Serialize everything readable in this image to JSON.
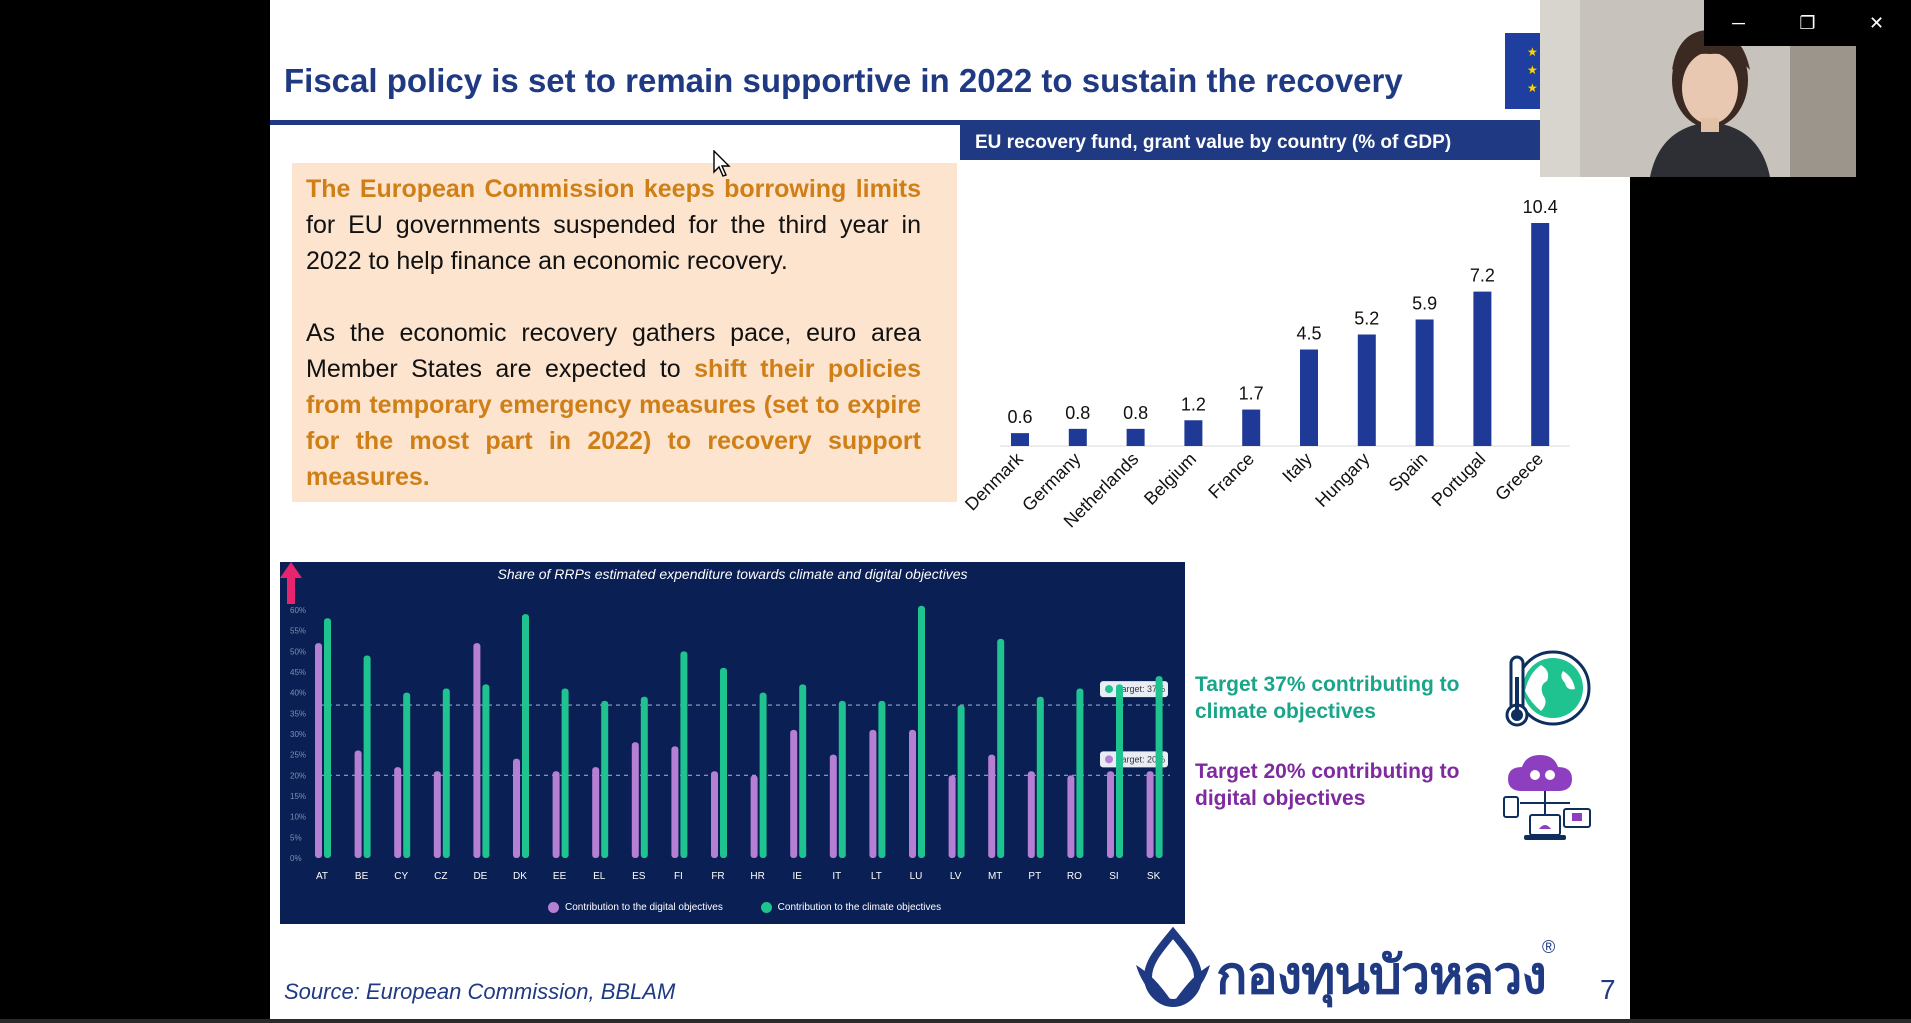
{
  "slide": {
    "title": "Fiscal policy is set to remain supportive in 2022 to sustain the recovery",
    "chart_title": "EU recovery fund, grant value by country (% of GDP)",
    "text": {
      "p1_hl": "The European Commission keeps borrowing limits",
      "p1_rest": " for EU governments suspended for the third year in 2022 to help finance an economic recovery.",
      "p2_start": "As the economic recovery gathers pace, euro area Member States are expected to ",
      "p2_hl": "shift their policies from temporary emergency measures (set to expire for the most part in 2022) to recovery support measures."
    },
    "rrp": {
      "title": "Share of RRPs estimated expenditure towards climate and digital objectives",
      "legend_digital": "Contribution to the digital objectives",
      "legend_climate": "Contribution to the climate objectives"
    },
    "targets": {
      "climate": "Target 37% contributing to climate objectives",
      "digital": "Target 20% contributing to digital objectives"
    },
    "source": "Source:  European Commission, BBLAM",
    "logo_text": "กองทุนบัวหลวง",
    "logo_reg": "®",
    "page_number": "7"
  },
  "window_controls": {
    "minimize": "─",
    "restore": "❐",
    "close": "✕"
  },
  "icons": [
    "globe-thermometer-icon",
    "cloud-devices-icon",
    "eu-flag-icon",
    "cursor-icon",
    "up-arrow-icon"
  ],
  "colors": {
    "navy": "#1F3A82",
    "orange": "#D07F17",
    "teal": "#18A589",
    "purple": "#7F2B9F",
    "rrp_bg": "#0A1F54",
    "digital": "#B57FD3",
    "climate": "#1EC38F"
  },
  "chart_data": [
    {
      "type": "bar",
      "title": "EU recovery fund, grant value by country (% of GDP)",
      "categories": [
        "Denmark",
        "Germany",
        "Netherlands",
        "Belgium",
        "France",
        "Italy",
        "Hungary",
        "Spain",
        "Portugal",
        "Greece"
      ],
      "values": [
        0.6,
        0.8,
        0.8,
        1.2,
        1.7,
        4.5,
        5.2,
        5.9,
        7.2,
        10.4
      ],
      "ylim": [
        0,
        10.4
      ],
      "data_labels": [
        "0.6",
        "0.8",
        "0.8",
        "1.2",
        "1.7",
        "4.5",
        "5.2",
        "5.9",
        "7.2",
        "10.4"
      ],
      "grid": false
    },
    {
      "type": "bar",
      "title": "Share of RRPs estimated expenditure towards climate and digital objectives",
      "categories": [
        "AT",
        "BE",
        "CY",
        "CZ",
        "DE",
        "DK",
        "EE",
        "EL",
        "ES",
        "FI",
        "FR",
        "HR",
        "IE",
        "IT",
        "LT",
        "LU",
        "LV",
        "MT",
        "PT",
        "RO",
        "SI",
        "SK"
      ],
      "y_ticks": [
        "0%",
        "5%",
        "10%",
        "15%",
        "20%",
        "25%",
        "30%",
        "35%",
        "40%",
        "45%",
        "50%",
        "55%",
        "60%"
      ],
      "ylim": [
        0,
        60
      ],
      "series": [
        {
          "name": "Contribution to the digital objectives",
          "values": [
            52,
            26,
            22,
            21,
            52,
            24,
            21,
            22,
            28,
            27,
            21,
            20,
            31,
            25,
            31,
            31,
            20,
            25,
            21,
            20,
            21,
            21
          ]
        },
        {
          "name": "Contribution to the climate objectives",
          "values": [
            58,
            49,
            40,
            41,
            42,
            59,
            41,
            38,
            39,
            50,
            46,
            40,
            42,
            38,
            38,
            61,
            37,
            53,
            39,
            41,
            42,
            44
          ]
        }
      ],
      "reference_lines": [
        {
          "label": "Target: 37%",
          "value": 37
        },
        {
          "label": "Target: 20%",
          "value": 20
        }
      ],
      "legend": "bottom",
      "grid": false
    }
  ]
}
